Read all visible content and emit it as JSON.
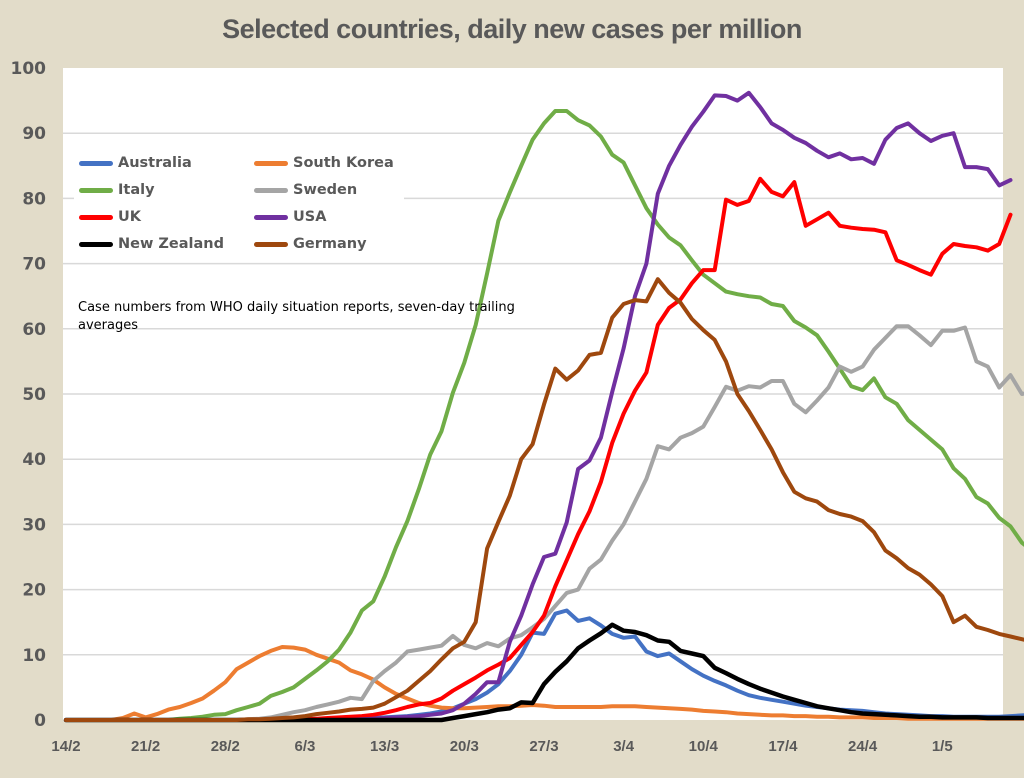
{
  "chart_data": {
    "type": "line",
    "title": "Selected countries, daily new cases per million",
    "xlabel": "",
    "ylabel": "",
    "ylim": [
      0,
      100
    ],
    "yticks": [
      0,
      10,
      20,
      30,
      40,
      50,
      60,
      70,
      80,
      90,
      100
    ],
    "x_start_label": "14/2",
    "x_days": 86,
    "xtick_labels": [
      "14/2",
      "21/2",
      "28/2",
      "6/3",
      "13/3",
      "20/3",
      "27/3",
      "3/4",
      "10/4",
      "17/4",
      "24/4",
      "1/5"
    ],
    "xtick_day_index": [
      0,
      7,
      14,
      21,
      28,
      35,
      42,
      49,
      56,
      63,
      70,
      77
    ],
    "grid": true,
    "legend_position": "top-left",
    "annotation": "Case numbers from WHO daily situation reports, seven-day trailing averages",
    "series": [
      {
        "name": "Australia",
        "color": "#4472c4",
        "values": [
          0,
          0,
          0,
          0,
          0,
          0,
          0,
          0,
          0,
          0,
          0,
          0,
          0,
          0,
          0,
          0,
          0,
          0,
          0,
          0,
          0,
          0,
          0.1,
          0.1,
          0.1,
          0.2,
          0.2,
          0.3,
          0.4,
          0.5,
          0.6,
          0.8,
          1,
          1.3,
          1.8,
          2.5,
          3.2,
          4.2,
          5.5,
          7.5,
          10,
          13.4,
          13.2,
          16.3,
          16.8,
          15.2,
          15.6,
          14.5,
          13.2,
          12.6,
          12.8,
          10.5,
          9.8,
          10.2,
          9,
          7.8,
          6.8,
          6,
          5.3,
          4.5,
          3.8,
          3.4,
          3.1,
          2.8,
          2.5,
          2.2,
          2,
          1.8,
          1.6,
          1.5,
          1.4,
          1.2,
          1,
          0.9,
          0.8,
          0.7,
          0.6,
          0.6,
          0.5,
          0.5,
          0.5,
          0.5,
          0.5,
          0.6,
          0.7,
          0.8
        ]
      },
      {
        "name": "South Korea",
        "color": "#ed7d31",
        "values": [
          0,
          0,
          0,
          0,
          0,
          0.3,
          1,
          0.4,
          0.9,
          1.6,
          2,
          2.6,
          3.3,
          4.5,
          5.8,
          7.8,
          8.8,
          9.8,
          10.6,
          11.2,
          11.1,
          10.8,
          10,
          9.4,
          8.8,
          7.6,
          7,
          6.2,
          5,
          4,
          3.3,
          2.6,
          2.2,
          1.9,
          1.8,
          1.8,
          1.9,
          2,
          2.1,
          2.1,
          2.2,
          2.3,
          2.2,
          2,
          2,
          2,
          2,
          2,
          2.1,
          2.1,
          2.1,
          2,
          1.9,
          1.8,
          1.7,
          1.6,
          1.4,
          1.3,
          1.2,
          1,
          0.9,
          0.8,
          0.7,
          0.7,
          0.6,
          0.6,
          0.5,
          0.5,
          0.4,
          0.4,
          0.4,
          0.3,
          0.3,
          0.3,
          0.2,
          0.2,
          0.2,
          0.2,
          0.2,
          0.2,
          0.2,
          0.2,
          0.2,
          0.2,
          0.2,
          0.2
        ]
      },
      {
        "name": "Italy",
        "color": "#70ad47",
        "values": [
          0,
          0,
          0,
          0,
          0,
          0,
          0,
          0,
          0,
          0,
          0.2,
          0.3,
          0.5,
          0.8,
          0.9,
          1.5,
          2,
          2.5,
          3.7,
          4.3,
          5,
          6.3,
          7.6,
          9,
          10.8,
          13.4,
          16.8,
          18.2,
          22,
          26.5,
          30.5,
          35.4,
          40.7,
          44.3,
          50.2,
          54.8,
          60.6,
          68.5,
          76.6,
          80.9,
          85,
          89,
          91.5,
          93.4,
          93.4,
          92,
          91.2,
          89.5,
          86.7,
          85.5,
          82,
          78.5,
          76,
          74,
          72.8,
          70.5,
          68.3,
          67,
          65.7,
          65.3,
          65,
          64.8,
          63.8,
          63.5,
          61.2,
          60.2,
          59,
          56.5,
          53.9,
          51.2,
          50.6,
          52.4,
          49.5,
          48.5,
          46,
          44.5,
          43,
          41.5,
          38.6,
          37,
          34.2,
          33.2,
          31,
          29.7,
          27.2,
          25.8
        ]
      },
      {
        "name": "Sweden",
        "color": "#a5a5a5",
        "values": [
          0,
          0,
          0,
          0,
          0,
          0,
          0,
          0,
          0,
          0,
          0,
          0,
          0,
          0,
          0,
          0,
          0.1,
          0.2,
          0.4,
          0.8,
          1.2,
          1.5,
          2,
          2.4,
          2.8,
          3.4,
          3.2,
          6,
          7.5,
          8.8,
          10.5,
          10.8,
          11.1,
          11.4,
          12.9,
          11.5,
          11,
          11.8,
          11.3,
          12.5,
          13,
          14.2,
          15.5,
          17.5,
          19.5,
          20,
          23.2,
          24.6,
          27.5,
          30,
          33.5,
          37,
          42,
          41.5,
          43.3,
          44,
          45,
          48,
          51.1,
          50.5,
          51.2,
          51,
          52,
          52,
          48.5,
          47.2,
          49,
          51,
          54.2,
          53.4,
          54.2,
          56.8,
          58.6,
          60.4,
          60.4,
          59,
          57.5,
          59.7,
          59.7,
          60.2,
          55,
          54.2,
          51,
          52.9,
          50,
          50.3
        ]
      },
      {
        "name": "UK",
        "color": "#ff0000",
        "values": [
          0,
          0,
          0,
          0,
          0,
          0,
          0,
          0,
          0,
          0,
          0,
          0,
          0,
          0,
          0,
          0,
          0,
          0,
          0,
          0,
          0.1,
          0.1,
          0.2,
          0.3,
          0.4,
          0.5,
          0.6,
          0.8,
          1.1,
          1.5,
          2,
          2.4,
          2.6,
          3.3,
          4.5,
          5.5,
          6.5,
          7.6,
          8.5,
          9.5,
          11.5,
          13.5,
          16,
          20.5,
          24.5,
          28.5,
          32,
          36.5,
          42.5,
          47,
          50.5,
          53.3,
          60.6,
          63.2,
          64.5,
          67,
          69,
          69,
          79.8,
          79,
          79.6,
          83,
          81,
          80.3,
          82.5,
          75.8,
          76.8,
          77.8,
          75.8,
          75.5,
          75.3,
          75.2,
          74.8,
          70.5,
          69.8,
          69,
          68.3,
          71.5,
          73,
          72.7,
          72.5,
          72,
          73,
          77.5
        ]
      },
      {
        "name": "USA",
        "color": "#7030a0",
        "values": [
          0,
          0,
          0,
          0,
          0,
          0,
          0,
          0,
          0,
          0,
          0,
          0,
          0,
          0,
          0,
          0,
          0,
          0,
          0,
          0,
          0,
          0,
          0,
          0,
          0,
          0,
          0.1,
          0.2,
          0.3,
          0.4,
          0.5,
          0.6,
          0.8,
          1,
          1.5,
          2.5,
          4,
          5.8,
          5.8,
          12,
          16,
          20.8,
          25,
          25.5,
          30.3,
          38.5,
          39.8,
          43.3,
          50.3,
          57,
          65,
          70,
          80.7,
          85,
          88.2,
          91,
          93.3,
          95.8,
          95.7,
          95,
          96.2,
          94,
          91.5,
          90.5,
          89.3,
          88.5,
          87.3,
          86.3,
          86.9,
          86,
          86.2,
          85.3,
          89,
          90.8,
          91.5,
          90,
          88.8,
          89.6,
          90,
          84.8,
          84.8,
          84.5,
          82,
          82.8
        ]
      },
      {
        "name": "New Zealand",
        "color": "#000000",
        "values": [
          0,
          0,
          0,
          0,
          0,
          0,
          0,
          0,
          0,
          0,
          0,
          0,
          0,
          0,
          0,
          0,
          0,
          0,
          0,
          0,
          0,
          0,
          0,
          0,
          0,
          0,
          0,
          0,
          0,
          0,
          0,
          0,
          0,
          0,
          0.3,
          0.6,
          0.9,
          1.2,
          1.6,
          1.8,
          2.7,
          2.6,
          5.5,
          7.4,
          9,
          11,
          12.2,
          13.3,
          14.6,
          13.7,
          13.5,
          13,
          12.2,
          12,
          10.6,
          10.2,
          9.8,
          8,
          7.2,
          6.3,
          5.5,
          4.8,
          4.2,
          3.6,
          3.1,
          2.6,
          2.1,
          1.8,
          1.5,
          1.2,
          1,
          0.9,
          0.8,
          0.7,
          0.6,
          0.5,
          0.5,
          0.4,
          0.4,
          0.4,
          0.4,
          0.3,
          0.3,
          0.3,
          0.3,
          0.3
        ]
      },
      {
        "name": "Germany",
        "color": "#9e480e",
        "values": [
          0,
          0,
          0,
          0,
          0,
          0,
          0,
          0,
          0,
          0,
          0,
          0,
          0,
          0,
          0,
          0,
          0.1,
          0.1,
          0.2,
          0.3,
          0.4,
          0.6,
          0.9,
          1.1,
          1.3,
          1.6,
          1.7,
          1.9,
          2.5,
          3.5,
          4.5,
          6,
          7.5,
          9.3,
          11,
          12,
          15,
          26.3,
          30.4,
          34.4,
          40,
          42.3,
          48.4,
          53.9,
          52.2,
          53.6,
          56,
          56.3,
          61.7,
          63.8,
          64.4,
          64.2,
          67.6,
          65.5,
          64,
          61.5,
          59.8,
          58.3,
          55,
          50,
          47.4,
          44.5,
          41.5,
          38,
          35,
          34,
          33.5,
          32.2,
          31.6,
          31.2,
          30.5,
          28.8,
          26,
          24.8,
          23.3,
          22.3,
          20.8,
          19,
          15,
          16,
          14.3,
          13.8,
          13.2,
          12.8,
          12.4,
          12
        ]
      }
    ]
  }
}
